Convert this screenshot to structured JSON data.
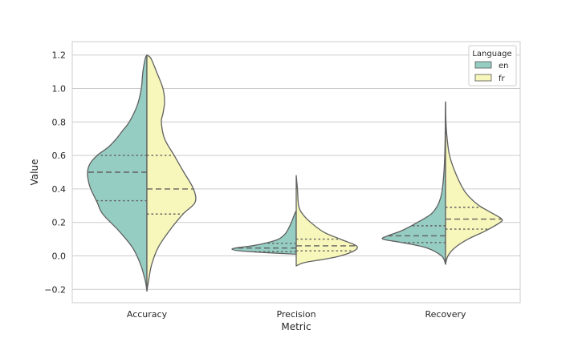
{
  "chart_data": {
    "type": "violin",
    "split": true,
    "title": "",
    "xlabel": "Metric",
    "ylabel": "Value",
    "categories": [
      "Accuracy",
      "Precision",
      "Recovery"
    ],
    "ylim": [
      -0.28,
      1.28
    ],
    "yticks": [
      -0.2,
      0.0,
      0.2,
      0.4,
      0.6,
      0.8,
      1.0,
      1.2
    ],
    "ytick_labels": [
      "−0.2",
      "0.0",
      "0.2",
      "0.4",
      "0.6",
      "0.8",
      "1.0",
      "1.2"
    ],
    "grid": true,
    "legend": {
      "title": "Language",
      "position": "top-right"
    },
    "series": [
      {
        "name": "en",
        "side": "left",
        "color": "#96cdc2",
        "violins": [
          {
            "category": "Accuracy",
            "quartiles": [
              0.33,
              0.5,
              0.6
            ],
            "profile": [
              [
                -0.21,
                0.0
              ],
              [
                -0.15,
                0.02
              ],
              [
                -0.05,
                0.08
              ],
              [
                0.05,
                0.18
              ],
              [
                0.15,
                0.35
              ],
              [
                0.25,
                0.55
              ],
              [
                0.32,
                0.62
              ],
              [
                0.4,
                0.7
              ],
              [
                0.45,
                0.73
              ],
              [
                0.5,
                0.74
              ],
              [
                0.55,
                0.71
              ],
              [
                0.6,
                0.62
              ],
              [
                0.65,
                0.48
              ],
              [
                0.7,
                0.38
              ],
              [
                0.75,
                0.3
              ],
              [
                0.8,
                0.22
              ],
              [
                0.9,
                0.12
              ],
              [
                1.0,
                0.07
              ],
              [
                1.1,
                0.05
              ],
              [
                1.18,
                0.02
              ],
              [
                1.2,
                0.0
              ]
            ]
          },
          {
            "category": "Precision",
            "quartiles": [
              0.025,
              0.047,
              0.075
            ],
            "profile": [
              [
                0.01,
                0.0
              ],
              [
                0.02,
                0.4
              ],
              [
                0.03,
                0.7
              ],
              [
                0.04,
                0.8
              ],
              [
                0.05,
                0.72
              ],
              [
                0.06,
                0.55
              ],
              [
                0.08,
                0.35
              ],
              [
                0.1,
                0.22
              ],
              [
                0.13,
                0.14
              ],
              [
                0.16,
                0.1
              ],
              [
                0.2,
                0.06
              ],
              [
                0.25,
                0.02
              ],
              [
                0.27,
                0.0
              ]
            ]
          },
          {
            "category": "Recovery",
            "quartiles": [
              0.08,
              0.12,
              0.18
            ],
            "profile": [
              [
                -0.05,
                0.0
              ],
              [
                0.0,
                0.05
              ],
              [
                0.05,
                0.25
              ],
              [
                0.08,
                0.55
              ],
              [
                0.1,
                0.78
              ],
              [
                0.12,
                0.72
              ],
              [
                0.15,
                0.55
              ],
              [
                0.2,
                0.35
              ],
              [
                0.25,
                0.18
              ],
              [
                0.3,
                0.1
              ],
              [
                0.35,
                0.06
              ],
              [
                0.4,
                0.04
              ],
              [
                0.5,
                0.02
              ],
              [
                0.6,
                0.01
              ],
              [
                0.7,
                0.005
              ],
              [
                0.8,
                0.003
              ],
              [
                0.92,
                0.0
              ]
            ]
          }
        ]
      },
      {
        "name": "fr",
        "side": "right",
        "color": "#f7f7bb",
        "violins": [
          {
            "category": "Accuracy",
            "quartiles": [
              0.25,
              0.4,
              0.6
            ],
            "profile": [
              [
                -0.21,
                0.0
              ],
              [
                -0.15,
                0.02
              ],
              [
                -0.05,
                0.06
              ],
              [
                0.05,
                0.14
              ],
              [
                0.15,
                0.28
              ],
              [
                0.25,
                0.45
              ],
              [
                0.32,
                0.6
              ],
              [
                0.4,
                0.58
              ],
              [
                0.5,
                0.46
              ],
              [
                0.6,
                0.34
              ],
              [
                0.7,
                0.22
              ],
              [
                0.8,
                0.18
              ],
              [
                0.85,
                0.2
              ],
              [
                0.92,
                0.22
              ],
              [
                1.0,
                0.2
              ],
              [
                1.1,
                0.12
              ],
              [
                1.18,
                0.05
              ],
              [
                1.2,
                0.0
              ]
            ]
          },
          {
            "category": "Precision",
            "quartiles": [
              0.03,
              0.06,
              0.1
            ],
            "profile": [
              [
                -0.06,
                0.0
              ],
              [
                -0.04,
                0.1
              ],
              [
                -0.02,
                0.35
              ],
              [
                0.0,
                0.55
              ],
              [
                0.03,
                0.72
              ],
              [
                0.06,
                0.75
              ],
              [
                0.1,
                0.55
              ],
              [
                0.14,
                0.35
              ],
              [
                0.2,
                0.18
              ],
              [
                0.25,
                0.08
              ],
              [
                0.3,
                0.03
              ],
              [
                0.4,
                0.015
              ],
              [
                0.48,
                0.0
              ]
            ]
          },
          {
            "category": "Recovery",
            "quartiles": [
              0.16,
              0.22,
              0.29
            ],
            "profile": [
              [
                -0.05,
                0.0
              ],
              [
                0.0,
                0.03
              ],
              [
                0.05,
                0.12
              ],
              [
                0.1,
                0.28
              ],
              [
                0.15,
                0.5
              ],
              [
                0.2,
                0.68
              ],
              [
                0.22,
                0.7
              ],
              [
                0.25,
                0.6
              ],
              [
                0.3,
                0.42
              ],
              [
                0.35,
                0.3
              ],
              [
                0.4,
                0.22
              ],
              [
                0.5,
                0.12
              ],
              [
                0.6,
                0.05
              ],
              [
                0.7,
                0.02
              ],
              [
                0.8,
                0.005
              ],
              [
                0.92,
                0.0
              ]
            ]
          }
        ]
      }
    ]
  }
}
